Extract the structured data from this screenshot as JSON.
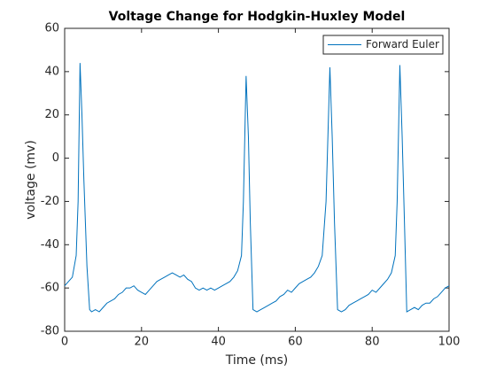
{
  "chart_data": {
    "type": "line",
    "title": "Voltage Change for Hodgkin-Huxley Model",
    "xlabel": "Time (ms)",
    "ylabel": "voltage (mv)",
    "xlim": [
      0,
      100
    ],
    "ylim": [
      -80,
      60
    ],
    "xticks": [
      0,
      20,
      40,
      60,
      80,
      100
    ],
    "yticks": [
      -80,
      -60,
      -40,
      -20,
      0,
      20,
      40,
      60
    ],
    "grid": false,
    "legend": "northeast",
    "series": [
      {
        "name": "Forward Euler",
        "color": "#0072bd",
        "x": [
          0,
          1,
          2,
          3,
          3.5,
          4,
          4.5,
          5,
          5.8,
          6.5,
          7,
          8,
          9,
          10,
          11,
          12,
          13,
          14,
          15,
          16,
          17,
          18,
          19,
          20,
          21,
          22,
          23,
          24,
          25,
          26,
          27,
          28,
          29,
          30,
          31,
          32,
          33,
          34,
          35,
          36,
          37,
          38,
          39,
          40,
          41,
          42,
          43,
          44,
          45,
          46,
          46.5,
          47.2,
          47.8,
          48.3,
          49,
          50,
          51,
          52,
          53,
          54,
          55,
          56,
          57,
          58,
          59,
          60,
          61,
          62,
          63,
          64,
          65,
          66,
          67,
          68,
          69,
          69.6,
          70.2,
          71,
          72,
          73,
          74,
          75,
          76,
          77,
          78,
          79,
          80,
          81,
          82,
          83,
          84,
          85,
          86,
          86.5,
          87.2,
          87.8,
          88.4,
          89,
          90,
          91,
          92,
          93,
          94,
          95,
          96,
          97,
          98,
          99,
          100
        ],
        "values": [
          -59,
          -57,
          -55,
          -45,
          -20,
          44,
          20,
          -10,
          -50,
          -70,
          -71,
          -70,
          -71,
          -69,
          -67,
          -66,
          -65,
          -63,
          -62,
          -60,
          -60,
          -59,
          -61,
          -62,
          -63,
          -61,
          -59,
          -57,
          -56,
          -55,
          -54,
          -53,
          -54,
          -55,
          -54,
          -56,
          -57,
          -60,
          -61,
          -60,
          -61,
          -60,
          -61,
          -60,
          -59,
          -58,
          -57,
          -55,
          -52,
          -45,
          -20,
          38,
          10,
          -30,
          -70,
          -71,
          -70,
          -69,
          -68,
          -67,
          -66,
          -64,
          -63,
          -61,
          -62,
          -60,
          -58,
          -57,
          -56,
          -55,
          -53,
          -50,
          -45,
          -20,
          42,
          10,
          -30,
          -70,
          -71,
          -70,
          -68,
          -67,
          -66,
          -65,
          -64,
          -63,
          -61,
          -62,
          -60,
          -58,
          -56,
          -53,
          -45,
          -20,
          43,
          10,
          -30,
          -71,
          -70,
          -69,
          -70,
          -68,
          -67,
          -67,
          -65,
          -64,
          -62,
          -60,
          -59
        ]
      }
    ]
  }
}
